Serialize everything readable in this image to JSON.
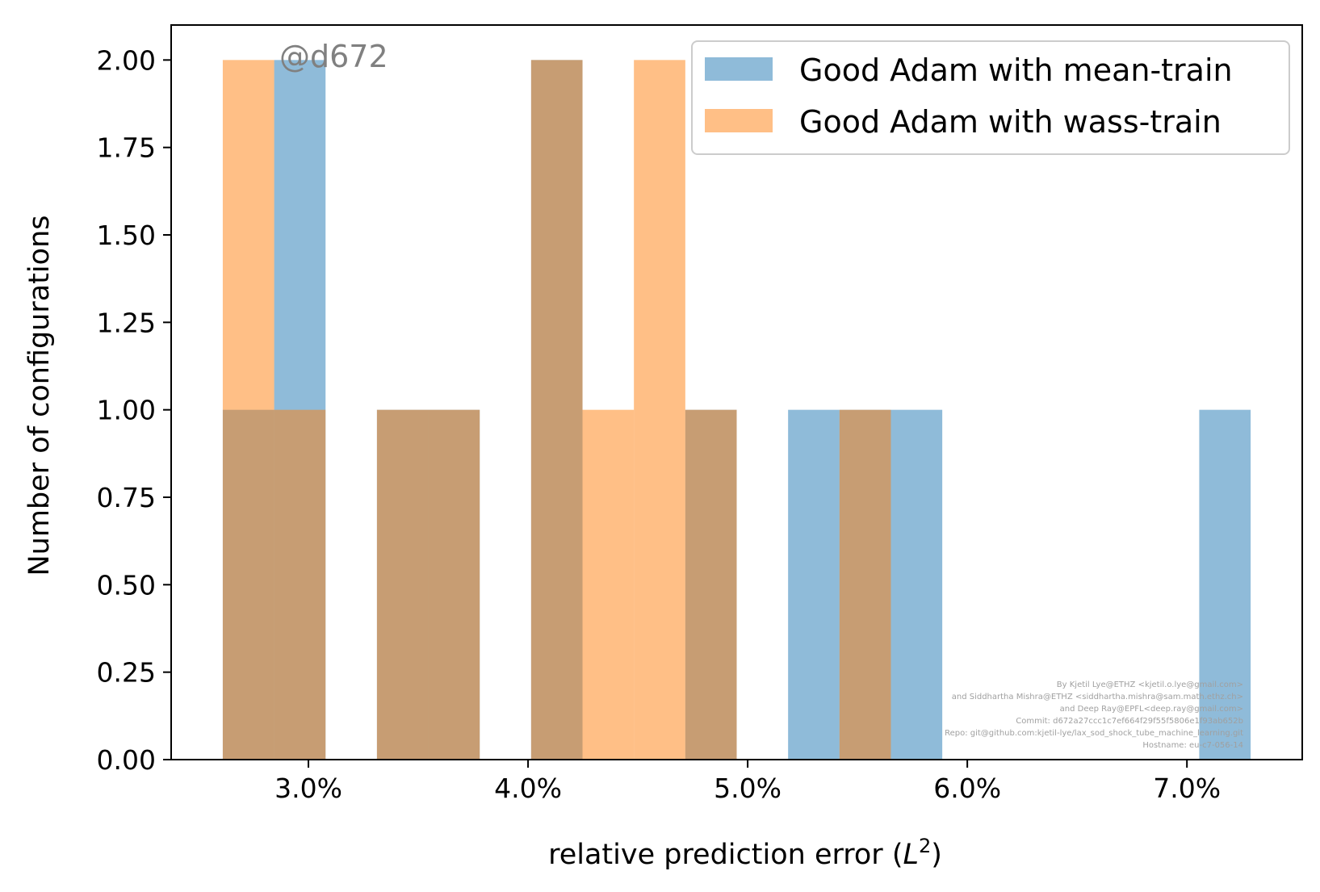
{
  "colors": {
    "mean": "#1f77b4",
    "wass": "#ff7f0e",
    "bar_alpha": 0.5,
    "watermark": "#808080",
    "credit": "#a0a0a0"
  },
  "watermark": "@d672",
  "credits": [
    "By Kjetil Lye@ETHZ <kjetil.o.lye@gmail.com>",
    "and Siddhartha Mishra@ETHZ <siddhartha.mishra@sam.math.ethz.ch>",
    "and Deep Ray@EPFL<deep.ray@gmail.com>",
    "Commit: d672a27ccc1c7ef664f29f55f5806e1f93ab652b",
    "Repo: git@github.com:kjetil-lye/lax_sod_shock_tube_machine_learning.git",
    "Hostname: eu-c7-056-14"
  ],
  "chart_data": {
    "type": "bar",
    "title": "",
    "xlabel": "relative prediction error",
    "xlabel_math": "L",
    "xlabel_sup": "2",
    "ylabel": "Number of configurations",
    "xlim": [
      2.375,
      7.525
    ],
    "ylim": [
      0,
      2.1
    ],
    "xticks": [
      3.0,
      4.0,
      5.0,
      6.0,
      7.0
    ],
    "xtick_labels": [
      "3.0%",
      "4.0%",
      "5.0%",
      "6.0%",
      "7.0%"
    ],
    "yticks": [
      0,
      0.25,
      0.5,
      0.75,
      1.0,
      1.25,
      1.5,
      1.75,
      2.0
    ],
    "ytick_labels": [
      "0.00",
      "0.25",
      "0.50",
      "0.75",
      "1.00",
      "1.25",
      "1.50",
      "1.75",
      "2.00"
    ],
    "legend_position": "top-right",
    "grid": false,
    "series": [
      {
        "name": "Good Adam with mean-train",
        "bin_edges": [
          2.61,
          2.844,
          3.078,
          3.312,
          3.546,
          3.78,
          4.014,
          4.248,
          4.482,
          4.716,
          4.95,
          5.184,
          5.418,
          5.652,
          5.886,
          6.12,
          6.354,
          6.588,
          6.822,
          7.056,
          7.29
        ],
        "counts": [
          1,
          2,
          0,
          1,
          1,
          0,
          2,
          0,
          0,
          1,
          0,
          1,
          1,
          1,
          0,
          0,
          0,
          0,
          0,
          1
        ]
      },
      {
        "name": "Good Adam with wass-train",
        "bin_edges": [
          2.61,
          2.844,
          3.078,
          3.312,
          3.546,
          3.78,
          4.014,
          4.248,
          4.482,
          4.716,
          4.95,
          5.184,
          5.418,
          5.652
        ],
        "counts": [
          2,
          1,
          0,
          1,
          1,
          0,
          2,
          1,
          2,
          1,
          0,
          0,
          1
        ]
      }
    ]
  }
}
